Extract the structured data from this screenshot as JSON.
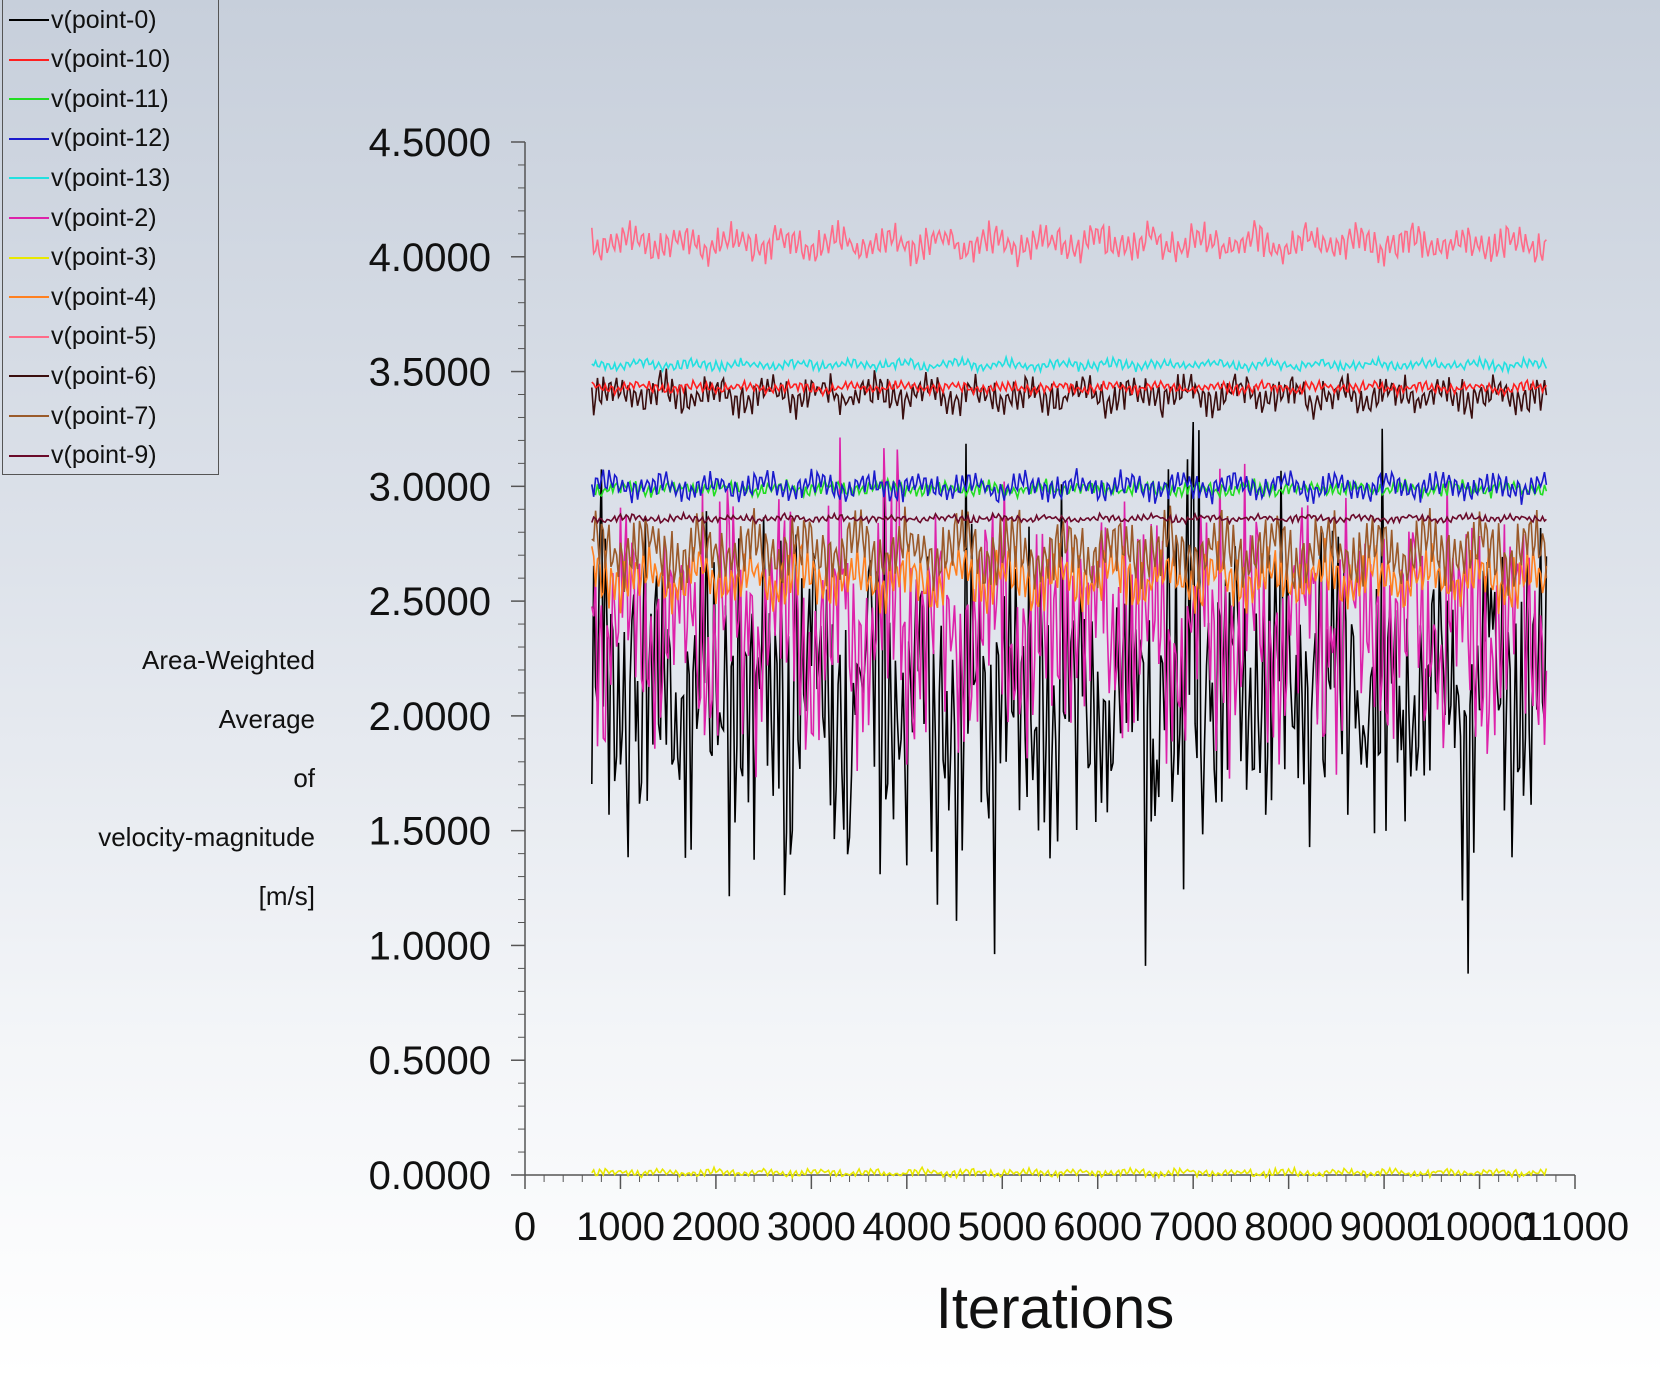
{
  "chart_data": {
    "type": "line",
    "title": "",
    "xlabel": "Iterations",
    "ylabel_lines": [
      "Area-Weighted",
      "Average",
      "of",
      "velocity-magnitude",
      "[m/s]"
    ],
    "xlim": [
      0,
      11000
    ],
    "ylim": [
      0,
      4.5
    ],
    "x_ticks": [
      "0",
      "1000",
      "2000",
      "3000",
      "4000",
      "5000",
      "6000",
      "7000",
      "8000",
      "9000",
      "10000",
      "11000"
    ],
    "y_ticks": [
      "0.0000",
      "0.5000",
      "1.0000",
      "1.5000",
      "2.0000",
      "2.5000",
      "3.0000",
      "3.5000",
      "4.0000",
      "4.5000"
    ],
    "legend_position": "top-left",
    "x_start": 700,
    "x_end": 10700,
    "series": [
      {
        "name": "v(point-0)",
        "color": "#000000",
        "mean": 2.1,
        "amp": 0.35,
        "noise": 0.25
      },
      {
        "name": "v(point-10)",
        "color": "#ff2020",
        "mean": 3.43,
        "amp": 0.015,
        "noise": 0.01
      },
      {
        "name": "v(point-11)",
        "color": "#22dd22",
        "mean": 2.99,
        "amp": 0.02,
        "noise": 0.015
      },
      {
        "name": "v(point-12)",
        "color": "#1a1acc",
        "mean": 3.0,
        "amp": 0.04,
        "noise": 0.02
      },
      {
        "name": "v(point-13)",
        "color": "#22e0e0",
        "mean": 3.53,
        "amp": 0.015,
        "noise": 0.01
      },
      {
        "name": "v(point-2)",
        "color": "#dd22aa",
        "mean": 2.35,
        "amp": 0.3,
        "noise": 0.18
      },
      {
        "name": "v(point-3)",
        "color": "#e8e800",
        "mean": 0.01,
        "amp": 0.01,
        "noise": 0.008
      },
      {
        "name": "v(point-4)",
        "color": "#ff8020",
        "mean": 2.6,
        "amp": 0.08,
        "noise": 0.05
      },
      {
        "name": "v(point-5)",
        "color": "#ff6b88",
        "mean": 4.06,
        "amp": 0.05,
        "noise": 0.03
      },
      {
        "name": "v(point-6)",
        "color": "#3a0e0e",
        "mean": 3.4,
        "amp": 0.05,
        "noise": 0.035
      },
      {
        "name": "v(point-7)",
        "color": "#9a5a2a",
        "mean": 2.72,
        "amp": 0.1,
        "noise": 0.05
      },
      {
        "name": "v(point-9)",
        "color": "#6a0a2a",
        "mean": 2.86,
        "amp": 0.01,
        "noise": 0.008
      }
    ]
  }
}
